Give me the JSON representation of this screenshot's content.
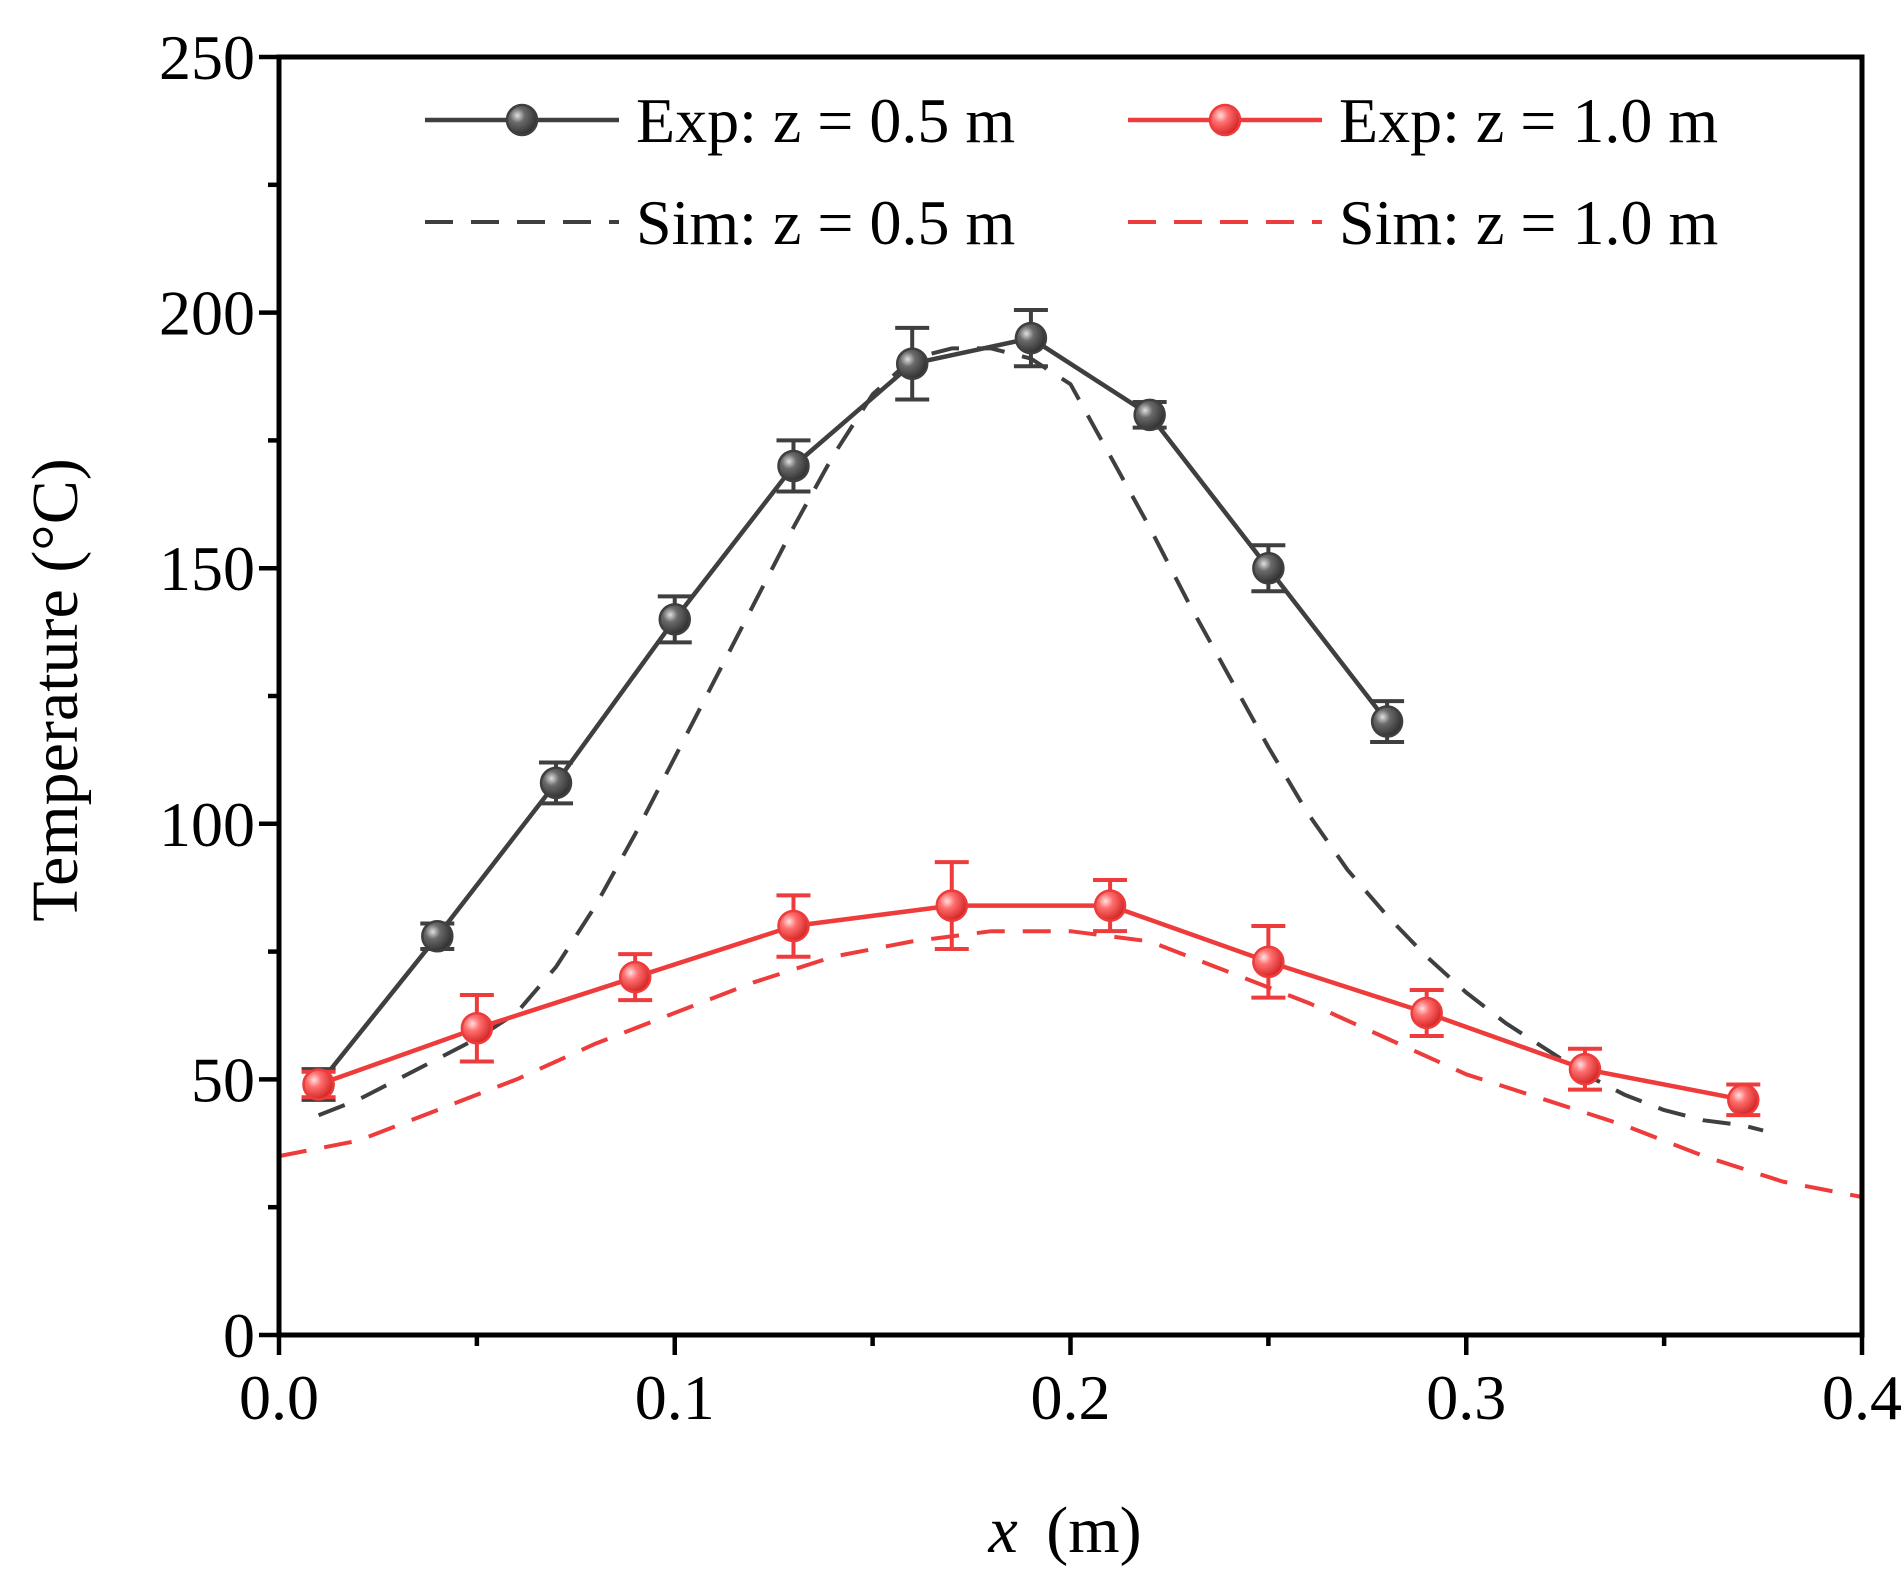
{
  "chart_data": {
    "type": "line",
    "xlabel_italic": "x",
    "xlabel_unit": "(m)",
    "ylabel": "Temperature (°C)",
    "xlim": [
      0.0,
      0.4
    ],
    "ylim": [
      0,
      250
    ],
    "xticks": [
      0.0,
      0.1,
      0.2,
      0.3,
      0.4
    ],
    "xtick_labels": [
      "0.0",
      "0.1",
      "0.2",
      "0.3",
      "0.4"
    ],
    "yticks": [
      0,
      50,
      100,
      150,
      200,
      250
    ],
    "ytick_labels": [
      "0",
      "50",
      "100",
      "150",
      "200",
      "250"
    ],
    "legend_position": "top-right",
    "series": [
      {
        "name": "Exp: z = 0.5 m",
        "kind": "experiment",
        "color": "#3f3f3f",
        "marker_highlight": "#bdbdbd",
        "x": [
          0.01,
          0.04,
          0.07,
          0.1,
          0.13,
          0.16,
          0.19,
          0.22,
          0.25,
          0.28
        ],
        "y": [
          49,
          78,
          108,
          140,
          170,
          190,
          195,
          180,
          150,
          120
        ],
        "err": [
          3,
          2.5,
          4,
          4.5,
          5,
          7,
          5.5,
          2.5,
          4.5,
          4
        ]
      },
      {
        "name": "Exp: z = 1.0 m",
        "kind": "experiment",
        "color": "#ee3b3b",
        "marker_highlight": "#ffc6c6",
        "x": [
          0.01,
          0.05,
          0.09,
          0.13,
          0.17,
          0.21,
          0.25,
          0.29,
          0.33,
          0.37
        ],
        "y": [
          49,
          60,
          70,
          80,
          84,
          84,
          73,
          63,
          52,
          46
        ],
        "err": [
          2.5,
          6.5,
          4.5,
          6,
          8.5,
          5,
          7,
          4.5,
          4,
          3
        ]
      },
      {
        "name": "Sim: z = 0.5 m",
        "kind": "simulation",
        "color": "#3f3f3f",
        "x": [
          0.01,
          0.02,
          0.03,
          0.04,
          0.05,
          0.06,
          0.07,
          0.08,
          0.09,
          0.1,
          0.11,
          0.12,
          0.13,
          0.14,
          0.15,
          0.16,
          0.17,
          0.18,
          0.19,
          0.2,
          0.21,
          0.22,
          0.23,
          0.24,
          0.25,
          0.26,
          0.27,
          0.28,
          0.29,
          0.3,
          0.31,
          0.32,
          0.33,
          0.34,
          0.35,
          0.36,
          0.37,
          0.375
        ],
        "y": [
          43,
          46,
          50,
          54,
          58,
          63,
          72,
          84,
          98,
          113,
          128,
          143,
          158,
          172,
          184,
          191,
          193,
          193,
          191,
          186,
          172,
          158,
          143,
          129,
          115,
          102,
          91,
          82,
          74,
          67,
          61,
          56,
          51,
          47,
          44,
          42,
          41,
          40
        ]
      },
      {
        "name": "Sim: z = 1.0 m",
        "kind": "simulation",
        "color": "#ee3b3b",
        "x": [
          0.0,
          0.02,
          0.04,
          0.06,
          0.08,
          0.1,
          0.12,
          0.14,
          0.16,
          0.18,
          0.2,
          0.22,
          0.24,
          0.26,
          0.28,
          0.3,
          0.32,
          0.34,
          0.36,
          0.38,
          0.4
        ],
        "y": [
          35,
          38,
          44,
          50,
          57,
          63,
          69,
          74,
          77,
          79,
          79,
          77,
          71,
          65,
          58,
          51,
          46,
          41,
          35,
          30,
          27
        ]
      }
    ]
  }
}
